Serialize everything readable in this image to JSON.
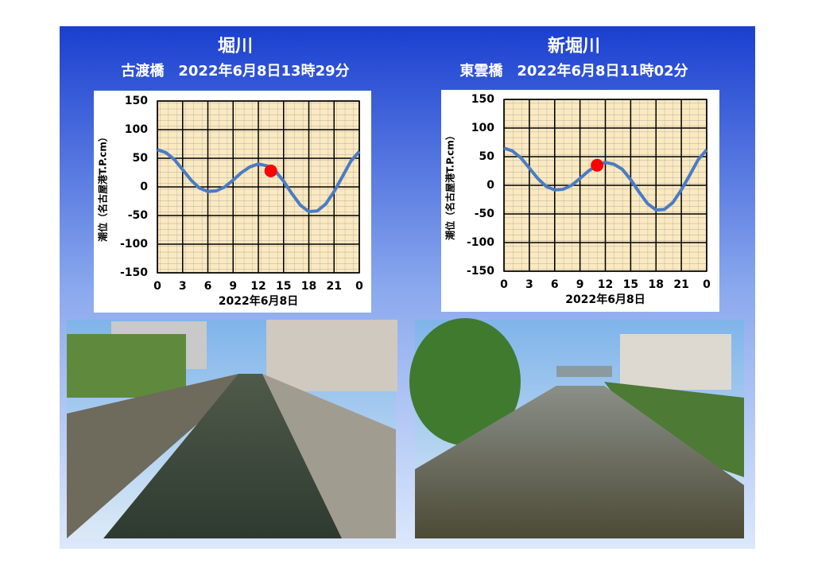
{
  "chart_data": [
    {
      "type": "line",
      "title": "堀川",
      "subtitle": "古渡橋　2022年6月8日13時29分",
      "x_label": "2022年6月8日",
      "y_label": "潮位（名古屋港T.P.cm）",
      "x": [
        0,
        1,
        2,
        3,
        4,
        5,
        6,
        7,
        8,
        9,
        10,
        11,
        12,
        13,
        14,
        15,
        16,
        17,
        18,
        19,
        20,
        21,
        22,
        23,
        24
      ],
      "series": [
        {
          "color": "#4a7cc4",
          "values": [
            65,
            60,
            48,
            30,
            12,
            -2,
            -8,
            -7,
            0,
            12,
            25,
            35,
            40,
            37,
            28,
            10,
            -12,
            -32,
            -43,
            -42,
            -30,
            -8,
            18,
            45,
            62
          ]
        }
      ],
      "point": {
        "x": 13.48,
        "y": 28,
        "color": "#ff0000"
      },
      "xlim": [
        0,
        24
      ],
      "xticks": [
        0,
        3,
        6,
        9,
        12,
        15,
        18,
        21,
        {
          "value": 24,
          "label": "0"
        }
      ],
      "ylim": [
        -150,
        150
      ],
      "yticks": [
        -150,
        -100,
        -50,
        0,
        50,
        100,
        150
      ],
      "grid": true
    },
    {
      "type": "line",
      "title": "新堀川",
      "subtitle": "東雲橋　2022年6月8日11時02分",
      "x_label": "2022年6月8日",
      "y_label": "潮位（名古屋港T.P.cm）",
      "x": [
        0,
        1,
        2,
        3,
        4,
        5,
        6,
        7,
        8,
        9,
        10,
        11,
        12,
        13,
        14,
        15,
        16,
        17,
        18,
        19,
        20,
        21,
        22,
        23,
        24
      ],
      "series": [
        {
          "color": "#4a7cc4",
          "values": [
            65,
            60,
            48,
            30,
            12,
            -2,
            -8,
            -7,
            0,
            12,
            25,
            35,
            40,
            37,
            28,
            10,
            -12,
            -32,
            -43,
            -42,
            -30,
            -8,
            18,
            45,
            62
          ]
        }
      ],
      "point": {
        "x": 11.03,
        "y": 35,
        "color": "#ff0000"
      },
      "xlim": [
        0,
        24
      ],
      "xticks": [
        0,
        3,
        6,
        9,
        12,
        15,
        18,
        21,
        {
          "value": 24,
          "label": "0"
        }
      ],
      "ylim": [
        -150,
        150
      ],
      "yticks": [
        -150,
        -100,
        -50,
        0,
        50,
        100,
        150
      ],
      "grid": true
    }
  ]
}
